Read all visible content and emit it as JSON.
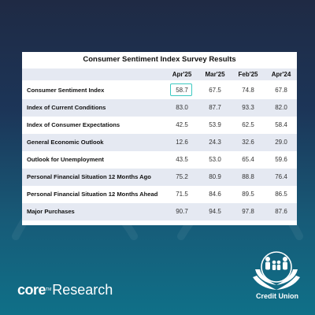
{
  "table": {
    "title": "Consumer Sentiment Index Survey Results",
    "columns": [
      "Apr'25",
      "Mar'25",
      "Feb'25",
      "Apr'24"
    ],
    "rows": [
      {
        "label": "Consumer Sentiment Index",
        "values": [
          "58.7",
          "67.5",
          "74.8",
          "67.8"
        ]
      },
      {
        "label": "Index of Current Conditions",
        "values": [
          "83.0",
          "87.7",
          "93.3",
          "82.0"
        ]
      },
      {
        "label": "Index of Consumer Expectations",
        "values": [
          "42.5",
          "53.9",
          "62.5",
          "58.4"
        ]
      },
      {
        "label": "General Economic Outlook",
        "values": [
          "12.6",
          "24.3",
          "32.6",
          "29.0"
        ]
      },
      {
        "label": "Outlook for Unemployment",
        "values": [
          "43.5",
          "53.0",
          "65.4",
          "59.6"
        ]
      },
      {
        "label": "Personal Financial Situation 12 Months Ago",
        "values": [
          "75.2",
          "80.9",
          "88.8",
          "76.4"
        ]
      },
      {
        "label": "Personal Financial Situation 12 Months Ahead",
        "values": [
          "71.5",
          "84.6",
          "89.5",
          "86.5"
        ]
      },
      {
        "label": "Major Purchases",
        "values": [
          "90.7",
          "94.5",
          "97.8",
          "87.6"
        ]
      }
    ],
    "highlighted_cell": {
      "row": 0,
      "column": 0
    },
    "highlight_color": "#3cc9c1"
  },
  "footer": {
    "brand_core": "core",
    "brand_tm": "TM",
    "brand_research": "Research",
    "credit_union_text": "Credit Union",
    "logo_icon": "credit-union-family-hands-icon"
  },
  "colors": {
    "background_top": "#1f2a44",
    "background_bottom": "#0f7088",
    "row_alt": "#e5e9f2"
  }
}
